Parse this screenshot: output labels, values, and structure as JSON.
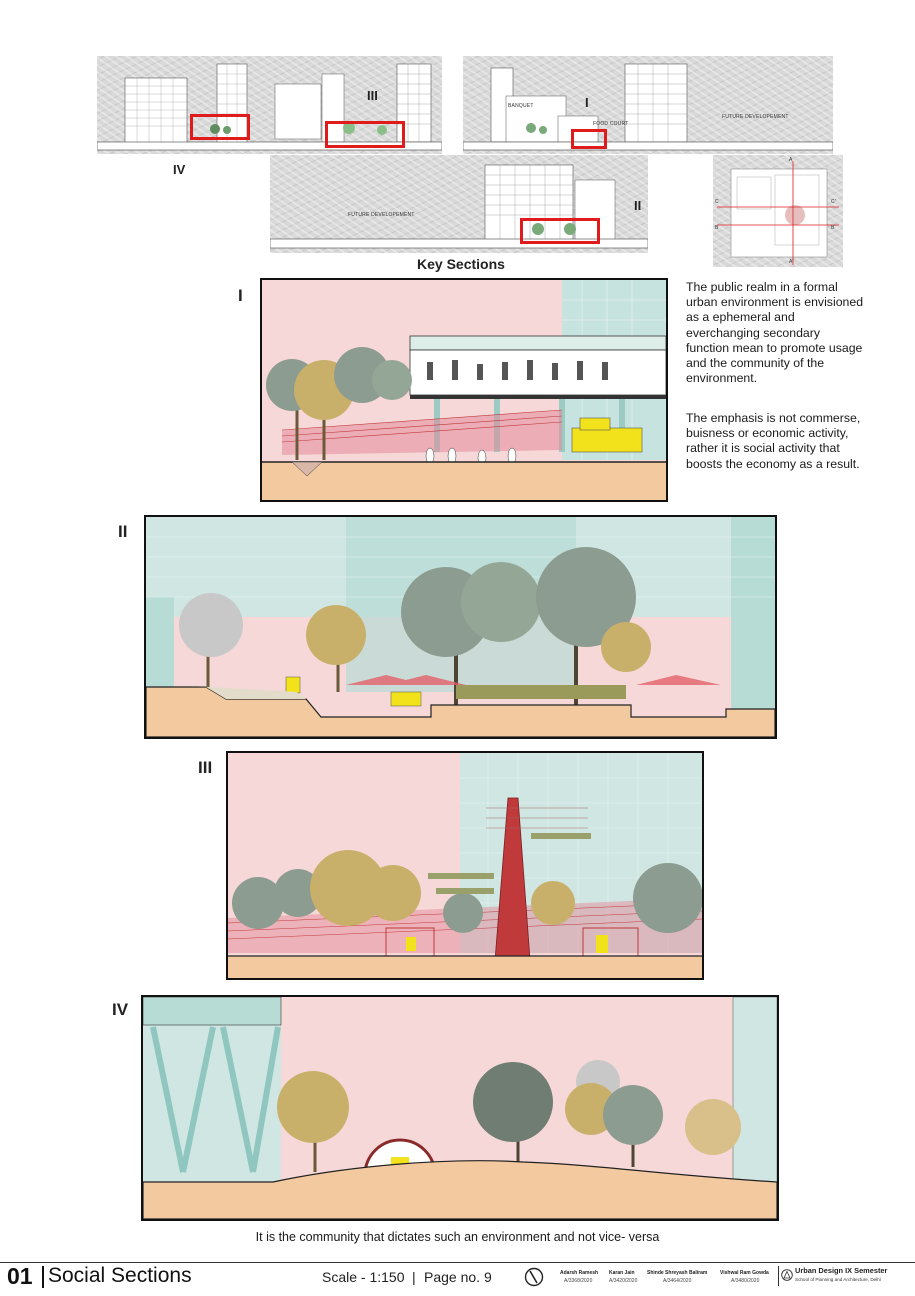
{
  "key_sections": {
    "caption": "Key Sections",
    "labels": {
      "i": "I",
      "ii": "II",
      "iii": "III",
      "iv": "IV"
    },
    "plan_letters": {
      "a_top": "A",
      "a_bottom": "A'",
      "c_left": "C",
      "c_right": "C'",
      "b_left": "B",
      "b_right": "B'"
    },
    "building_labels": {
      "banquet": "BANQUET",
      "food_court": "FOOD COURT",
      "future_dev_top": "FUTURE DEVELOPEMENT",
      "future_dev_bottom": "FUTURE DEVELOPEMENT"
    }
  },
  "sections": [
    {
      "label": "I"
    },
    {
      "label": "II"
    },
    {
      "label": "III"
    },
    {
      "label": "IV"
    }
  ],
  "description": {
    "para1": "The public realm in a formal urban environment is envisioned as a ephemeral and everchanging secondary function mean to promote usage and the community of the environment.",
    "para2": "The emphasis is not commerse, buisness or economic activity, rather it is social activity that boosts the economy as a result."
  },
  "bottom_caption": "It is the community that dictates such an environment and not vice- versa",
  "footer": {
    "number": "01",
    "title": "Social Sections",
    "scale": "Scale - 1:150",
    "separator": "|",
    "page": "Page no. 9",
    "credits": [
      {
        "name": "Adarsh Ramesh",
        "id": "A/3368/2020"
      },
      {
        "name": "Karan Jain",
        "id": "A/3420/2020"
      },
      {
        "name": "Shinde Shreyash Baliram",
        "id": "A/3464/2020"
      },
      {
        "name": "Vishwal Ram Gowda",
        "id": "A/3480/2020"
      }
    ],
    "course": "Urban Design IX Semester",
    "school": "School of Planning and Architecture, Delhi"
  },
  "colors": {
    "sky_pink": "#f7d8d8",
    "glass_teal": "#bfe0dc",
    "ground_orange": "#f3c9a0",
    "red_highlight": "#e01b1b",
    "tree_olive": "#c9b06a",
    "tree_grey": "#8c9c90",
    "brick_red": "#c0393b",
    "yellow_cart": "#f2e21b"
  },
  "icons": [
    "north-arrow-icon",
    "spa-logo-icon"
  ]
}
